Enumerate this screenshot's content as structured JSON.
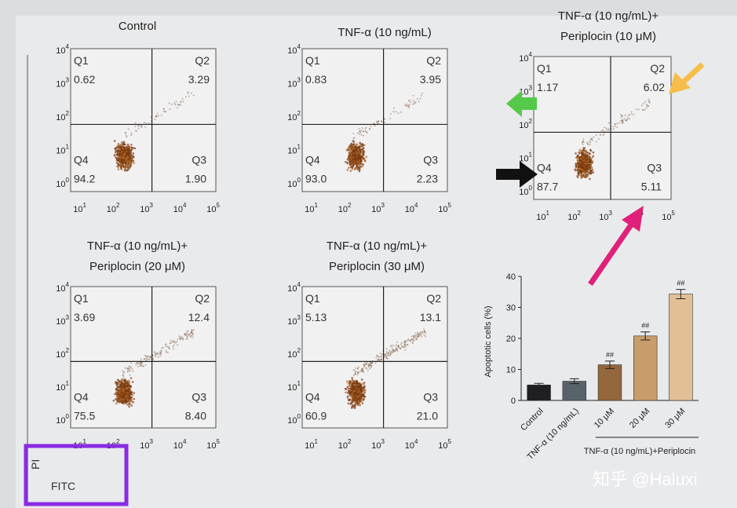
{
  "panels": [
    {
      "title": [
        "Control"
      ],
      "quadrants": [
        {
          "label": "Q1",
          "value": "0.62"
        },
        {
          "label": "Q2",
          "value": "3.29"
        },
        {
          "label": "Q3",
          "value": "1.90"
        },
        {
          "label": "Q4",
          "value": "94.2"
        }
      ]
    },
    {
      "title": [
        "TNF-α (10 ng/mL)"
      ],
      "quadrants": [
        {
          "label": "Q1",
          "value": "0.83"
        },
        {
          "label": "Q2",
          "value": "3.95"
        },
        {
          "label": "Q3",
          "value": "2.23"
        },
        {
          "label": "Q4",
          "value": "93.0"
        }
      ]
    },
    {
      "title": [
        "TNF-α (10 ng/mL)+",
        "Periplocin (10 μM)"
      ],
      "quadrants": [
        {
          "label": "Q1",
          "value": "1.17"
        },
        {
          "label": "Q2",
          "value": "6.02"
        },
        {
          "label": "Q3",
          "value": "5.11"
        },
        {
          "label": "Q4",
          "value": "87.7"
        }
      ]
    },
    {
      "title": [
        "TNF-α (10 ng/mL)+",
        "Periplocin (20 μM)"
      ],
      "quadrants": [
        {
          "label": "Q1",
          "value": "3.69"
        },
        {
          "label": "Q2",
          "value": "12.4"
        },
        {
          "label": "Q3",
          "value": "8.40"
        },
        {
          "label": "Q4",
          "value": "75.5"
        }
      ]
    },
    {
      "title": [
        "TNF-α (10 ng/mL)+",
        "Periplocin (30 μM)"
      ],
      "quadrants": [
        {
          "label": "Q1",
          "value": "5.13"
        },
        {
          "label": "Q2",
          "value": "13.1"
        },
        {
          "label": "Q3",
          "value": "21.0"
        },
        {
          "label": "Q4",
          "value": "60.9"
        }
      ]
    }
  ],
  "flow_axis": {
    "base": "10",
    "x_exponents": [
      "1",
      "2",
      "3",
      "4",
      "5"
    ],
    "y_exponents": [
      "0",
      "1",
      "2",
      "3",
      "4"
    ],
    "y_label": "PI",
    "x_label": "FITC"
  },
  "chart_data": {
    "type": "bar",
    "ylabel": "Apoptotic cells (%)",
    "categories": [
      "Control",
      "TNF-α (10 ng/mL)",
      "10 μM",
      "20 μM",
      "30 μM"
    ],
    "values": [
      5,
      6.2,
      11.5,
      20.8,
      34.3
    ],
    "errors": [
      0.5,
      0.8,
      1.2,
      1.3,
      1.5
    ],
    "colors": [
      "#1f1f22",
      "#59616b",
      "#94673c",
      "#c99c6c",
      "#e2bf95"
    ],
    "significance": [
      null,
      null,
      "##",
      "##",
      "##"
    ],
    "group_label": "TNF-α (10 ng/mL)+Periplocin",
    "ylim": [
      0,
      40
    ],
    "yticks": [
      0,
      10,
      20,
      30,
      40
    ]
  },
  "watermark": "知乎 @Haluxi"
}
